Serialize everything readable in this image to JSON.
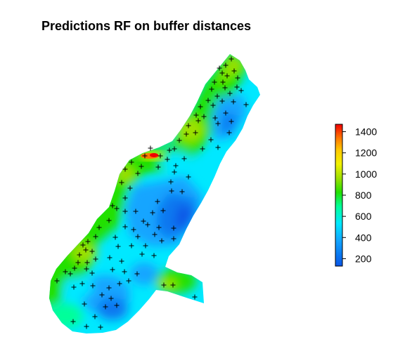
{
  "title": "Predictions RF on buffer distances",
  "legend": {
    "min": 130,
    "max": 1470,
    "ticks": [
      200,
      400,
      600,
      800,
      1000,
      1200,
      1400
    ],
    "tick_labels": [
      "200",
      "400",
      "600",
      "800",
      "1000",
      "1200",
      "1400"
    ],
    "colors": [
      "#0a55e6",
      "#12a5ff",
      "#00e8ff",
      "#00ff9a",
      "#22e000",
      "#9ee000",
      "#f2f200",
      "#ff9a00",
      "#ff2e00",
      "#f00000"
    ]
  }
}
